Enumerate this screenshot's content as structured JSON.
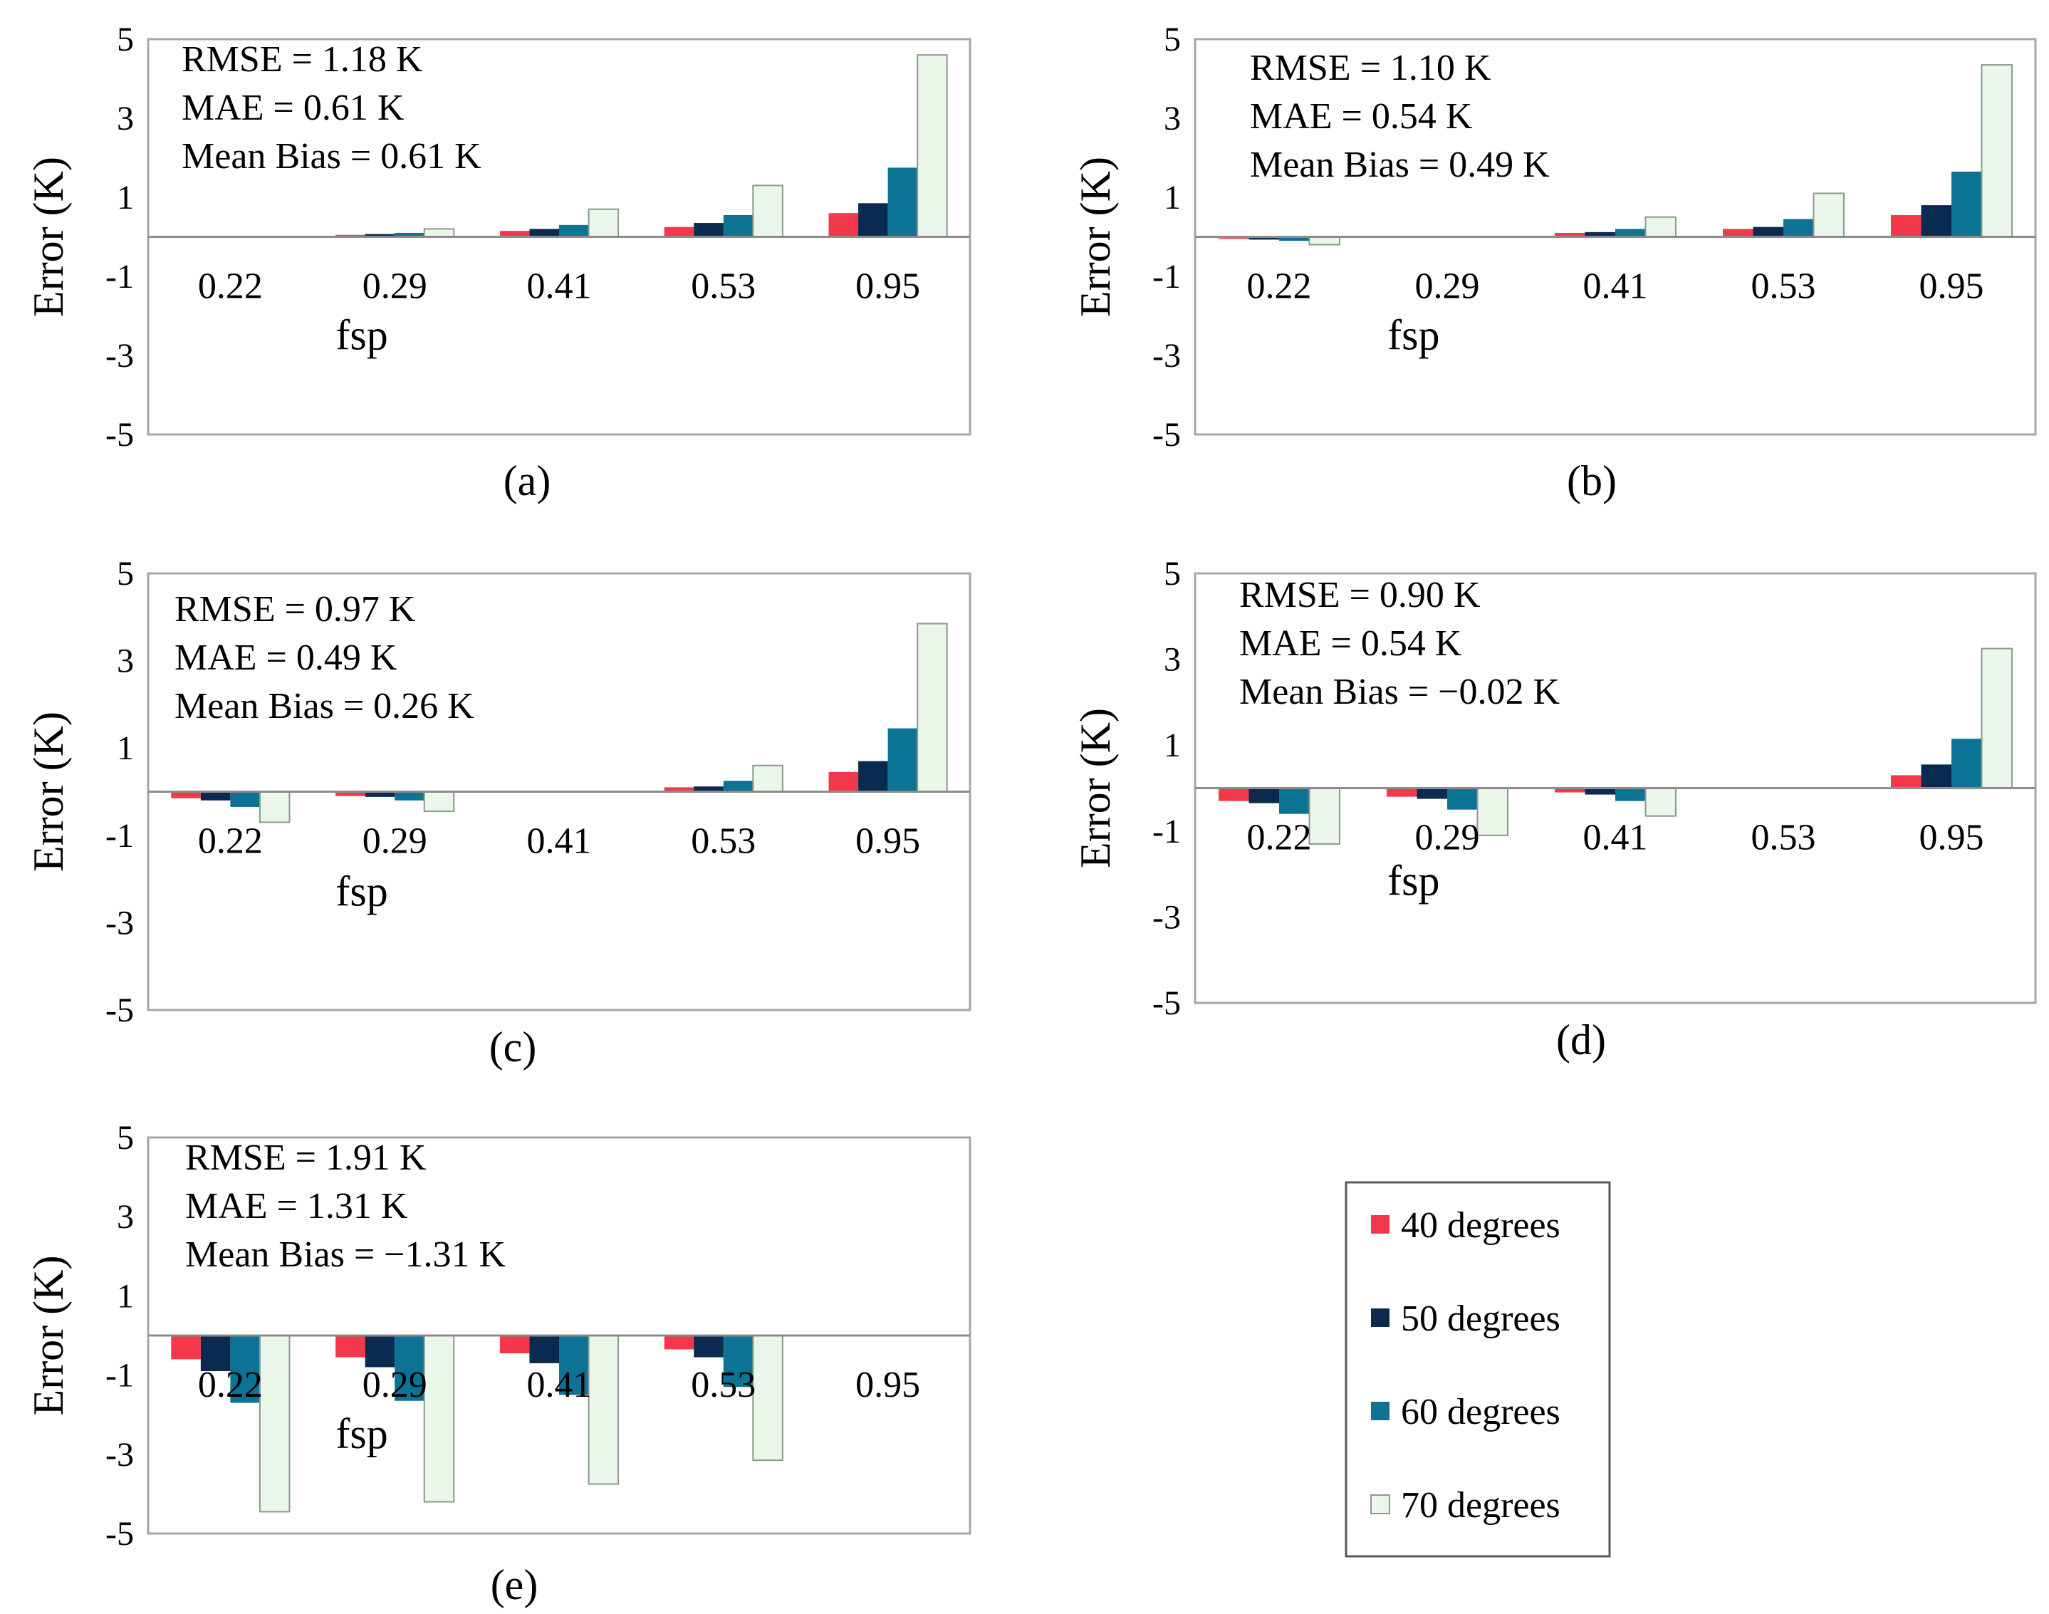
{
  "figure": {
    "series_colors": [
      "#f2394b",
      "#0b2a4f",
      "#0d7394",
      "#ebf7eb"
    ],
    "series_strokes": [
      "#f2394b",
      "#0b2a4f",
      "#0d7394",
      "#8a9a8a"
    ]
  },
  "legend": {
    "items": [
      "40 degrees",
      "50 degrees",
      "60 degrees",
      "70 degrees"
    ]
  },
  "chart_data": [
    {
      "type": "bar",
      "caption": "(a)",
      "ylabel": "Error (K)",
      "xlabel": "fsp",
      "ylim": [
        -5,
        5
      ],
      "yticks": [
        "5",
        "3",
        "1",
        "-1",
        "-3",
        "-5"
      ],
      "categories": [
        "0.22",
        "0.29",
        "0.41",
        "0.53",
        "0.95"
      ],
      "stats": [
        "RMSE = 1.18 K",
        "MAE = 0.61 K",
        "Mean Bias = 0.61 K"
      ],
      "series": [
        {
          "name": "40 degrees",
          "values": [
            0,
            0.05,
            0.15,
            0.25,
            0.6
          ]
        },
        {
          "name": "50 degrees",
          "values": [
            0,
            0.07,
            0.2,
            0.35,
            0.85
          ]
        },
        {
          "name": "60 degrees",
          "values": [
            0,
            0.1,
            0.3,
            0.55,
            1.75
          ]
        },
        {
          "name": "70 degrees",
          "values": [
            0,
            0.2,
            0.7,
            1.3,
            4.6
          ]
        }
      ]
    },
    {
      "type": "bar",
      "caption": "(b)",
      "ylabel": "Error (K)",
      "xlabel": "fsp",
      "ylim": [
        -5,
        5
      ],
      "yticks": [
        "5",
        "3",
        "1",
        "-1",
        "-3",
        "-5"
      ],
      "categories": [
        "0.22",
        "0.29",
        "0.41",
        "0.53",
        "0.95"
      ],
      "stats": [
        "RMSE = 1.10 K",
        "MAE = 0.54 K",
        "Mean Bias = 0.49 K"
      ],
      "series": [
        {
          "name": "40 degrees",
          "values": [
            -0.05,
            0,
            0.1,
            0.2,
            0.55
          ]
        },
        {
          "name": "50 degrees",
          "values": [
            -0.07,
            0,
            0.12,
            0.25,
            0.8
          ]
        },
        {
          "name": "60 degrees",
          "values": [
            -0.1,
            0,
            0.2,
            0.45,
            1.65
          ]
        },
        {
          "name": "70 degrees",
          "values": [
            -0.2,
            0,
            0.5,
            1.1,
            4.35
          ]
        }
      ]
    },
    {
      "type": "bar",
      "caption": "(c)",
      "ylabel": "Error (K)",
      "xlabel": "fsp",
      "ylim": [
        -5,
        5
      ],
      "yticks": [
        "5",
        "3",
        "1",
        "-1",
        "-3",
        "-5"
      ],
      "categories": [
        "0.22",
        "0.29",
        "0.41",
        "0.53",
        "0.95"
      ],
      "stats": [
        "RMSE = 0.97 K",
        "MAE = 0.49 K",
        "Mean Bias = 0.26 K"
      ],
      "series": [
        {
          "name": "40 degrees",
          "values": [
            -0.15,
            -0.1,
            0,
            0.1,
            0.45
          ]
        },
        {
          "name": "50 degrees",
          "values": [
            -0.2,
            -0.12,
            0,
            0.12,
            0.7
          ]
        },
        {
          "name": "60 degrees",
          "values": [
            -0.35,
            -0.2,
            0,
            0.25,
            1.45
          ]
        },
        {
          "name": "70 degrees",
          "values": [
            -0.7,
            -0.45,
            0,
            0.6,
            3.85
          ]
        }
      ]
    },
    {
      "type": "bar",
      "caption": "(d)",
      "ylabel": "Error (K)",
      "xlabel": "fsp",
      "ylim": [
        -5,
        5
      ],
      "yticks": [
        "5",
        "3",
        "1",
        "-1",
        "-3",
        "-5"
      ],
      "categories": [
        "0.22",
        "0.29",
        "0.41",
        "0.53",
        "0.95"
      ],
      "stats": [
        "RMSE = 0.90 K",
        "MAE = 0.54 K",
        "Mean Bias = −0.02 K"
      ],
      "series": [
        {
          "name": "40 degrees",
          "values": [
            -0.3,
            -0.2,
            -0.1,
            0,
            0.3
          ]
        },
        {
          "name": "50 degrees",
          "values": [
            -0.35,
            -0.25,
            -0.15,
            0,
            0.55
          ]
        },
        {
          "name": "60 degrees",
          "values": [
            -0.6,
            -0.5,
            -0.3,
            0,
            1.15
          ]
        },
        {
          "name": "70 degrees",
          "values": [
            -1.3,
            -1.1,
            -0.65,
            0,
            3.25
          ]
        }
      ]
    },
    {
      "type": "bar",
      "caption": "(e)",
      "ylabel": "Error (K)",
      "xlabel": "fsp",
      "ylim": [
        -5,
        5
      ],
      "yticks": [
        "5",
        "3",
        "1",
        "-1",
        "-3",
        "-5"
      ],
      "categories": [
        "0.22",
        "0.29",
        "0.41",
        "0.53",
        "0.95"
      ],
      "stats": [
        "RMSE = 1.91 K",
        "MAE = 1.31 K",
        "Mean Bias = −1.31 K"
      ],
      "series": [
        {
          "name": "40 degrees",
          "values": [
            -0.6,
            -0.55,
            -0.45,
            -0.35,
            0
          ]
        },
        {
          "name": "50 degrees",
          "values": [
            -0.9,
            -0.8,
            -0.7,
            -0.55,
            0
          ]
        },
        {
          "name": "60 degrees",
          "values": [
            -1.7,
            -1.65,
            -1.5,
            -1.3,
            0
          ]
        },
        {
          "name": "70 degrees",
          "values": [
            -4.45,
            -4.2,
            -3.75,
            -3.15,
            0
          ]
        }
      ]
    }
  ]
}
